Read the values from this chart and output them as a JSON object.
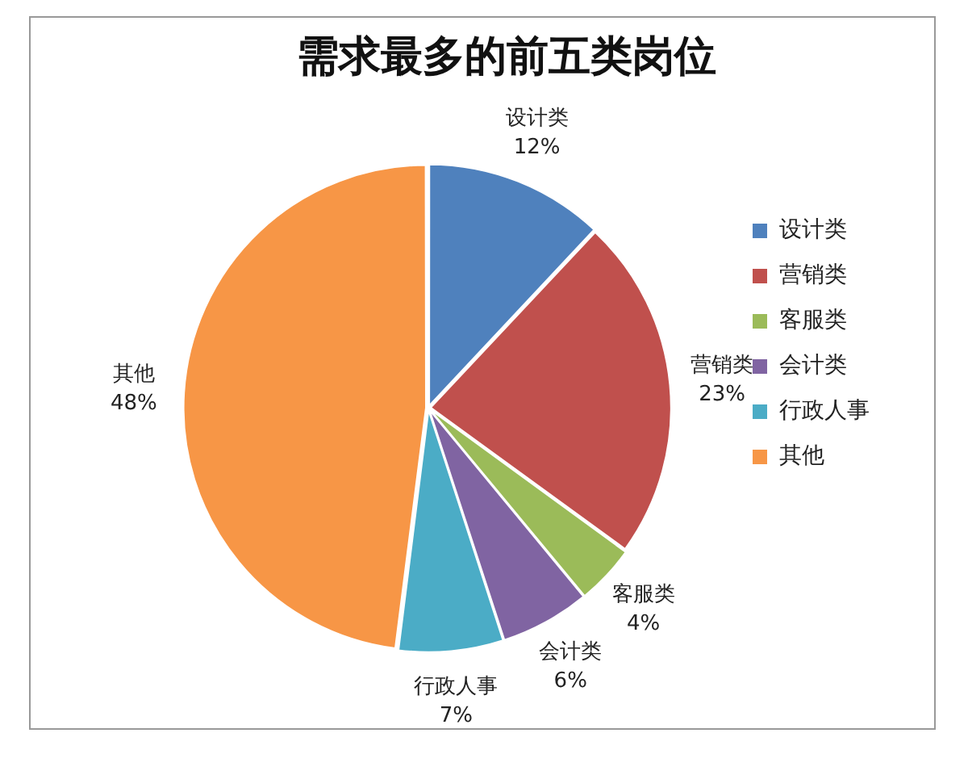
{
  "chart_data": {
    "type": "pie",
    "title": "需求最多的前五类岗位",
    "categories": [
      "设计类",
      "营销类",
      "客服类",
      "会计类",
      "行政人事",
      "其他"
    ],
    "values": [
      12,
      23,
      4,
      6,
      7,
      48
    ],
    "value_labels": [
      "12%",
      "23%",
      "4%",
      "6%",
      "7%",
      "48%"
    ],
    "colors": [
      "#4f81bd",
      "#c0504d",
      "#9bbb59",
      "#8064a2",
      "#4bacc6",
      "#f79646"
    ],
    "legend": "right"
  }
}
